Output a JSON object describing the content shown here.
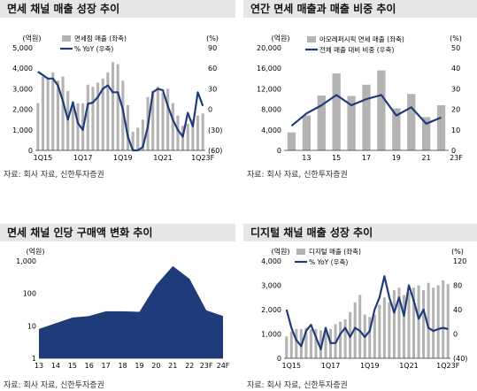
{
  "panels": [
    {
      "title": "면세 채널 매출 성장 추이",
      "source": "자료: 회사 자료, 신한투자증권",
      "chart_data": {
        "type": "bar+line",
        "left_unit": "(억원)",
        "right_unit": "(%)",
        "ylim_left": [
          0,
          5000
        ],
        "yticks_left": [
          "0",
          "1,000",
          "2,000",
          "3,000",
          "4,000",
          "5,000"
        ],
        "ylim_right": [
          -60,
          90
        ],
        "yticks_right": [
          "(60)",
          "(30)",
          "0",
          "30",
          "60",
          "90"
        ],
        "xtick_labels": [
          "1Q15",
          "1Q17",
          "1Q19",
          "1Q21",
          "1Q23F"
        ],
        "xtick_index": [
          0,
          8,
          16,
          24,
          32
        ],
        "series": [
          {
            "name": "면세점 매출 (좌축)",
            "kind": "bar",
            "color": "#b3b3b3",
            "values": [
              2300,
              3600,
              3500,
              3800,
              3400,
              3600,
              2900,
              2400,
              2300,
              2300,
              3200,
              3100,
              3300,
              3500,
              3800,
              4300,
              4200,
              3400,
              2200,
              900,
              1100,
              1500,
              2600,
              2900,
              3100,
              2800,
              3000,
              2300,
              1700,
              1200,
              1300,
              1500,
              1700,
              1800
            ]
          },
          {
            "name": "% YoY (우축)",
            "kind": "line",
            "color": "#1f3b7a",
            "values": [
              55,
              50,
              45,
              45,
              35,
              12,
              -15,
              10,
              -20,
              -30,
              8,
              10,
              18,
              30,
              35,
              25,
              25,
              0,
              -40,
              -60,
              -60,
              -55,
              -25,
              25,
              30,
              28,
              5,
              -15,
              -30,
              -40,
              -5,
              -25,
              25,
              5
            ]
          }
        ]
      }
    },
    {
      "title": "연간 면세 매출과 매출 비중 추이",
      "source": "자료: 회사 자료, 신한투자증권",
      "chart_data": {
        "type": "bar+line",
        "left_unit": "(억원)",
        "right_unit": "(%)",
        "ylim_left": [
          0,
          20000
        ],
        "yticks_left": [
          "0",
          "4,000",
          "8,000",
          "12,000",
          "16,000",
          "20,000"
        ],
        "ylim_right": [
          0,
          50
        ],
        "yticks_right": [
          "0",
          "10",
          "20",
          "30",
          "40",
          "50"
        ],
        "xtick_labels": [
          "13",
          "15",
          "17",
          "19",
          "21",
          "23F"
        ],
        "xtick_index": [
          0,
          2,
          4,
          6,
          8,
          10
        ],
        "series": [
          {
            "name": "아모레퍼시픽 면세 매출 (좌축)",
            "kind": "bar",
            "color": "#b3b3b3",
            "values": [
              3500,
              6800,
              10700,
              15000,
              10600,
              12800,
              15600,
              8200,
              11000,
              6500,
              8800
            ]
          },
          {
            "name": "전체 매출 대비 비중 (우축)",
            "kind": "line",
            "color": "#1f3b7a",
            "values": [
              12,
              18,
              22,
              27,
              22,
              25,
              27,
              17,
              21,
              13,
              16
            ]
          }
        ]
      }
    },
    {
      "title": "면세 채널 인당 구매액 변화 추이",
      "source": "자료: 회사 자료, 신한투자증권",
      "chart_data": {
        "type": "area",
        "left_unit": "(억원)",
        "scale": "log",
        "ylim": [
          1,
          1000
        ],
        "yticks": [
          "1",
          "10",
          "100",
          "1,000"
        ],
        "categories": [
          "13",
          "14",
          "15",
          "16",
          "17",
          "18",
          "19",
          "20",
          "21",
          "22",
          "23F",
          "24F"
        ],
        "values": [
          8,
          12,
          18,
          20,
          28,
          28,
          27,
          180,
          700,
          280,
          30,
          20
        ],
        "color": "#1f3b7a"
      }
    },
    {
      "title": "디지털 채널 매출 성장 추이",
      "source": "자료: 회사 자료, 신한투자증권",
      "chart_data": {
        "type": "bar+line",
        "left_unit": "(억원)",
        "right_unit": "(%)",
        "ylim_left": [
          0,
          4000
        ],
        "yticks_left": [
          "0",
          "1,000",
          "2,000",
          "3,000",
          "4,000"
        ],
        "ylim_right": [
          -40,
          120
        ],
        "yticks_right": [
          "(40)",
          "0",
          "40",
          "80",
          "120"
        ],
        "xtick_labels": [
          "1Q15",
          "1Q17",
          "1Q19",
          "1Q21",
          "1Q23F"
        ],
        "xtick_index": [
          0,
          8,
          16,
          24,
          32
        ],
        "series": [
          {
            "name": "디지털 매출 (좌축)",
            "kind": "bar",
            "color": "#b3b3b3",
            "values": [
              900,
              1100,
              1200,
              1200,
              1250,
              1200,
              1200,
              1150,
              1100,
              1200,
              1400,
              1500,
              1600,
              1900,
              2300,
              2600,
              1800,
              1700,
              1800,
              2200,
              2500,
              2300,
              2800,
              2900,
              2600,
              2700,
              2900,
              3000,
              2800,
              3100,
              2900,
              3000,
              3200,
              3050
            ]
          },
          {
            "name": "% YoY (우축)",
            "kind": "line",
            "color": "#1f3b7a",
            "values": [
              40,
              10,
              -10,
              -20,
              5,
              15,
              -5,
              -25,
              10,
              -15,
              -15,
              0,
              10,
              -5,
              10,
              5,
              -5,
              5,
              40,
              60,
              95,
              60,
              35,
              60,
              30,
              80,
              55,
              25,
              40,
              10,
              5,
              8,
              10,
              8
            ]
          }
        ]
      }
    }
  ]
}
